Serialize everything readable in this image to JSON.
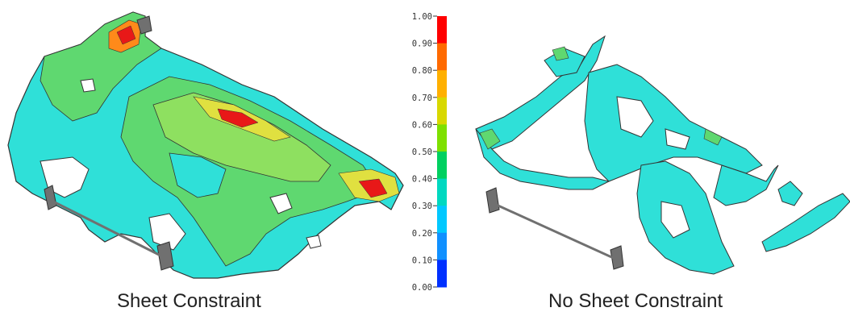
{
  "captions": {
    "left": "Sheet Constraint",
    "right": "No Sheet Constraint"
  },
  "legend": {
    "tick_labels": [
      "1.00",
      "0.90",
      "0.80",
      "0.70",
      "0.60",
      "0.50",
      "0.40",
      "0.30",
      "0.20",
      "0.10",
      "0.00"
    ],
    "range": [
      0,
      1
    ],
    "colors": [
      "#ff0000",
      "#ff6a00",
      "#ffb000",
      "#d8d800",
      "#7ee000",
      "#00d060",
      "#00d8c0",
      "#00c8ff",
      "#1090ff",
      "#0030ff",
      "#0000c8"
    ]
  },
  "colors": {
    "cyan": "#2fe0d8",
    "green": "#5fd870",
    "light_green": "#8ee060",
    "yellow": "#e0e040",
    "orange": "#ff8a1a",
    "red": "#e81818",
    "outline": "#333333",
    "bracket": "#707070"
  }
}
